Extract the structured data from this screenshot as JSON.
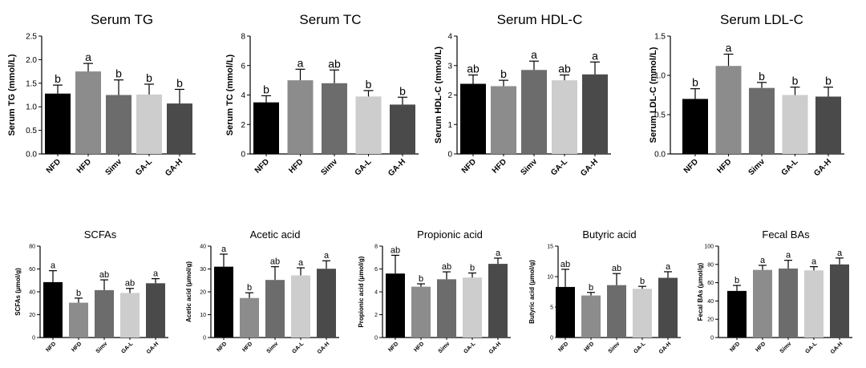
{
  "chart_data": [
    {
      "type": "bar",
      "title": "Serum TG",
      "ylabel": "Serum TG (mmol/L)",
      "categories": [
        "NFD",
        "HFD",
        "Simv",
        "GA-L",
        "GA-H"
      ],
      "values": [
        1.28,
        1.75,
        1.25,
        1.26,
        1.07
      ],
      "errors": [
        0.18,
        0.17,
        0.32,
        0.22,
        0.3
      ],
      "significance": [
        "b",
        "a",
        "b",
        "b",
        "b"
      ],
      "colors": [
        "#000000",
        "#8c8c8c",
        "#6c6c6c",
        "#cdcdcd",
        "#4a4a4a"
      ],
      "ylim": [
        0,
        2.5
      ],
      "yticks": [
        "0.0",
        "0.5",
        "1.0",
        "1.5",
        "2.0",
        "2.5"
      ]
    },
    {
      "type": "bar",
      "title": "Serum TC",
      "ylabel": "Serum TC (mmol/L)",
      "categories": [
        "NFD",
        "HFD",
        "Simv",
        "GA-L",
        "GA-H"
      ],
      "values": [
        3.5,
        5.0,
        4.8,
        3.9,
        3.35
      ],
      "errors": [
        0.45,
        0.75,
        0.9,
        0.4,
        0.5
      ],
      "significance": [
        "b",
        "a",
        "ab",
        "b",
        "b"
      ],
      "colors": [
        "#000000",
        "#8c8c8c",
        "#6c6c6c",
        "#cdcdcd",
        "#4a4a4a"
      ],
      "ylim": [
        0,
        8
      ],
      "yticks": [
        "0",
        "2",
        "4",
        "6",
        "8"
      ]
    },
    {
      "type": "bar",
      "title": "Serum HDL-C",
      "ylabel": "Serum HDL-C (mmol/L)",
      "categories": [
        "NFD",
        "HFD",
        "Simv",
        "GA-L",
        "GA-H"
      ],
      "values": [
        2.38,
        2.3,
        2.85,
        2.5,
        2.7
      ],
      "errors": [
        0.3,
        0.2,
        0.3,
        0.18,
        0.42
      ],
      "significance": [
        "ab",
        "b",
        "a",
        "ab",
        "a"
      ],
      "colors": [
        "#000000",
        "#8c8c8c",
        "#6c6c6c",
        "#cdcdcd",
        "#4a4a4a"
      ],
      "ylim": [
        0,
        4
      ],
      "yticks": [
        "0",
        "1",
        "2",
        "3",
        "4"
      ]
    },
    {
      "type": "bar",
      "title": "Serum LDL-C",
      "ylabel": "Serum LDL-C (mmol/L)",
      "categories": [
        "NFD",
        "HFD",
        "Simv",
        "GA-L",
        "GA-H"
      ],
      "values": [
        0.7,
        1.12,
        0.84,
        0.75,
        0.73
      ],
      "errors": [
        0.13,
        0.15,
        0.07,
        0.1,
        0.12
      ],
      "significance": [
        "b",
        "a",
        "b",
        "b",
        "b"
      ],
      "colors": [
        "#000000",
        "#8c8c8c",
        "#6c6c6c",
        "#cdcdcd",
        "#4a4a4a"
      ],
      "ylim": [
        0,
        1.5
      ],
      "yticks": [
        "0.0",
        "0.5",
        "1.0",
        "1.5"
      ]
    },
    {
      "type": "bar",
      "title": "SCFAs",
      "ylabel": "SCFAs (μmol/g)",
      "categories": [
        "NFD",
        "HFD",
        "Simv",
        "GA-L",
        "GA-H"
      ],
      "values": [
        48.5,
        30.5,
        41.5,
        39,
        47.5
      ],
      "errors": [
        10,
        4,
        9,
        4,
        4
      ],
      "significance": [
        "a",
        "b",
        "ab",
        "ab",
        "a"
      ],
      "colors": [
        "#000000",
        "#8c8c8c",
        "#6c6c6c",
        "#cdcdcd",
        "#4a4a4a"
      ],
      "ylim": [
        0,
        80
      ],
      "yticks": [
        "0",
        "20",
        "40",
        "60",
        "80"
      ]
    },
    {
      "type": "bar",
      "title": "Acetic acid",
      "ylabel": "Acetic acid (μmol/g)",
      "categories": [
        "NFD",
        "HFD",
        "Simv",
        "GA-L",
        "GA-H"
      ],
      "values": [
        31,
        17.3,
        25.2,
        27.2,
        30.1
      ],
      "errors": [
        5.5,
        2.3,
        5.8,
        3.3,
        3.5
      ],
      "significance": [
        "a",
        "b",
        "ab",
        "a",
        "a"
      ],
      "colors": [
        "#000000",
        "#8c8c8c",
        "#6c6c6c",
        "#cdcdcd",
        "#4a4a4a"
      ],
      "ylim": [
        0,
        40
      ],
      "yticks": [
        "0",
        "10",
        "20",
        "30",
        "40"
      ]
    },
    {
      "type": "bar",
      "title": "Propionic acid",
      "ylabel": "Propionic acid (μmol/g)",
      "categories": [
        "NFD",
        "HFD",
        "Simv",
        "GA-L",
        "GA-H"
      ],
      "values": [
        5.6,
        4.45,
        5.1,
        5.25,
        6.45
      ],
      "errors": [
        1.6,
        0.25,
        0.65,
        0.4,
        0.5
      ],
      "significance": [
        "ab",
        "b",
        "ab",
        "b",
        "a"
      ],
      "colors": [
        "#000000",
        "#8c8c8c",
        "#6c6c6c",
        "#cdcdcd",
        "#4a4a4a"
      ],
      "ylim": [
        0,
        8
      ],
      "yticks": [
        "0",
        "2",
        "4",
        "6",
        "8"
      ]
    },
    {
      "type": "bar",
      "title": "Butyric acid",
      "ylabel": "Butyric acid (μmol/g)",
      "categories": [
        "NFD",
        "HFD",
        "Simv",
        "GA-L",
        "GA-H"
      ],
      "values": [
        8.3,
        6.9,
        8.6,
        8.0,
        9.8
      ],
      "errors": [
        2.9,
        0.5,
        1.9,
        0.4,
        1.0
      ],
      "significance": [
        "ab",
        "b",
        "ab",
        "b",
        "a"
      ],
      "colors": [
        "#000000",
        "#8c8c8c",
        "#6c6c6c",
        "#cdcdcd",
        "#4a4a4a"
      ],
      "ylim": [
        0,
        15
      ],
      "yticks": [
        "0",
        "5",
        "10",
        "15"
      ]
    },
    {
      "type": "bar",
      "title": "Fecal BAs",
      "ylabel": "Fecal BAs (μmol/g)",
      "categories": [
        "NFD",
        "HFD",
        "Simv",
        "GA-L",
        "GA-H"
      ],
      "values": [
        51,
        74,
        75.5,
        73.5,
        80
      ],
      "errors": [
        6,
        5,
        9,
        4,
        7
      ],
      "significance": [
        "b",
        "a",
        "a",
        "a",
        "a"
      ],
      "colors": [
        "#000000",
        "#8c8c8c",
        "#6c6c6c",
        "#cdcdcd",
        "#4a4a4a"
      ],
      "ylim": [
        0,
        100
      ],
      "yticks": [
        "0",
        "20",
        "40",
        "60",
        "80",
        "100"
      ]
    }
  ]
}
